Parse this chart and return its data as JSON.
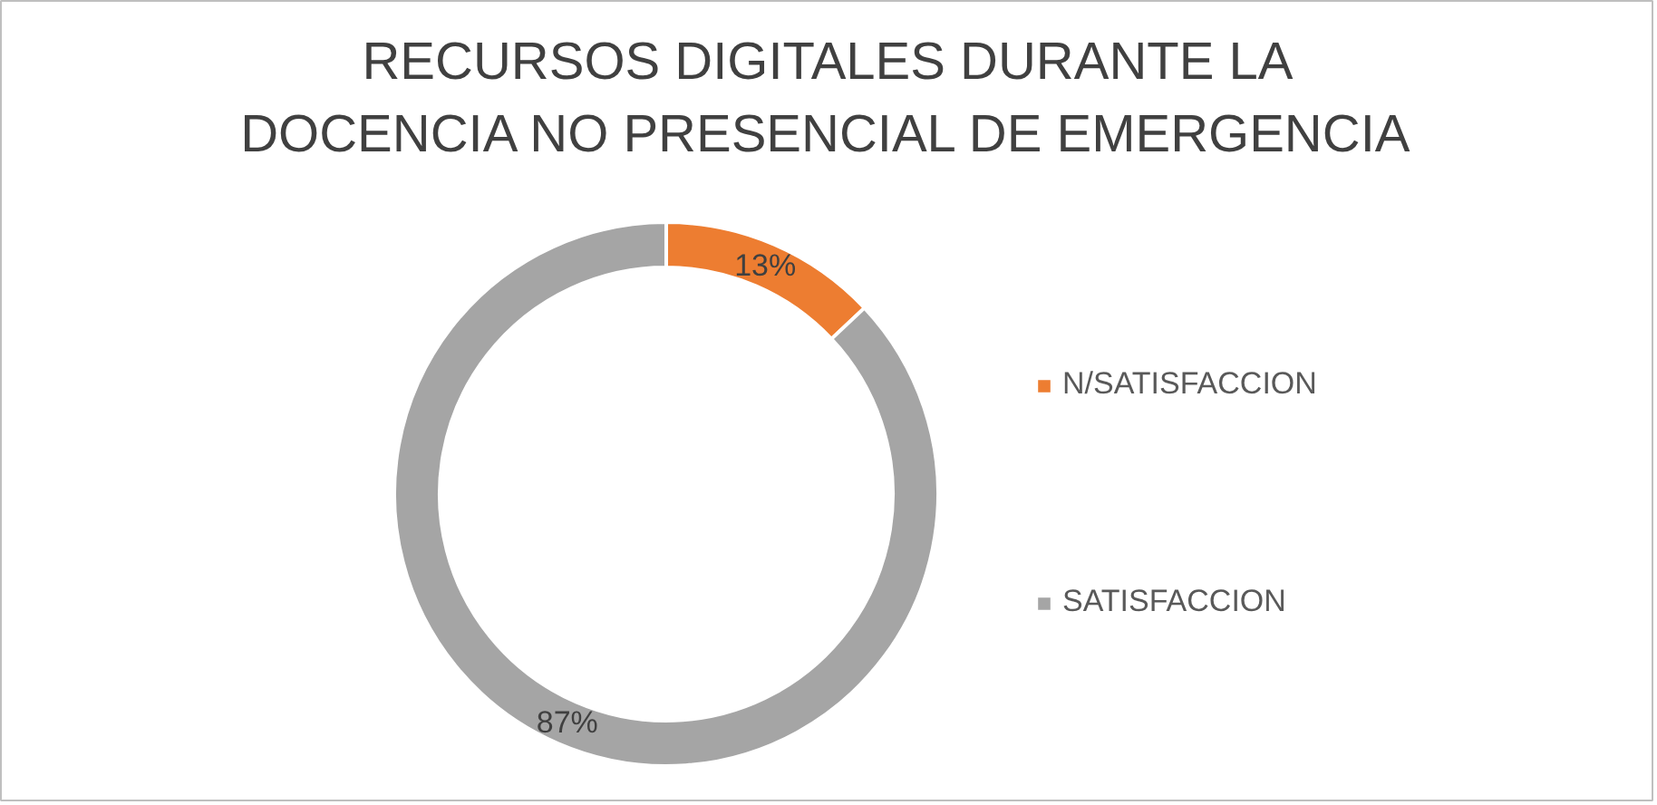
{
  "chart_data": {
    "type": "donut",
    "title": "RECURSOS DIGITALES DURANTE LA DOCENCIA NO PRESENCIAL DE EMERGENCIA",
    "categories": [
      "N/SATISFACCION",
      "SATISFACCION"
    ],
    "values": [
      13,
      87
    ],
    "colors": [
      "#ed7d31",
      "#a5a5a5"
    ],
    "value_labels": [
      "13%",
      "87%"
    ],
    "legend": "right"
  }
}
